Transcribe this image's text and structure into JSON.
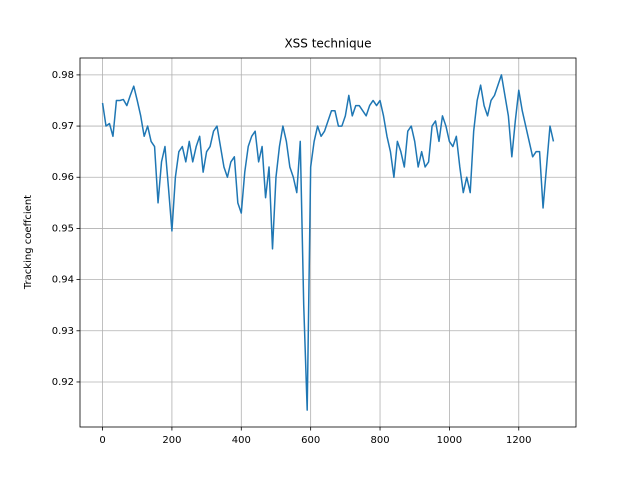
{
  "chart_data": {
    "type": "line",
    "title": "XSS technique",
    "y_label": "Tracking coeffcient",
    "x": [
      0,
      10,
      20,
      30,
      40,
      50,
      60,
      70,
      80,
      90,
      100,
      110,
      120,
      130,
      140,
      150,
      160,
      170,
      180,
      190,
      200,
      210,
      220,
      230,
      240,
      250,
      260,
      270,
      280,
      290,
      300,
      310,
      320,
      330,
      340,
      350,
      360,
      370,
      380,
      390,
      400,
      410,
      420,
      430,
      440,
      450,
      460,
      470,
      480,
      490,
      500,
      510,
      520,
      530,
      540,
      550,
      560,
      570,
      580,
      590,
      600,
      610,
      620,
      630,
      640,
      650,
      660,
      670,
      680,
      690,
      700,
      710,
      720,
      730,
      740,
      750,
      760,
      770,
      780,
      790,
      800,
      810,
      820,
      830,
      840,
      850,
      860,
      870,
      880,
      890,
      900,
      910,
      920,
      930,
      940,
      950,
      960,
      970,
      980,
      990,
      1000,
      1010,
      1020,
      1030,
      1040,
      1050,
      1060,
      1070,
      1080,
      1090,
      1100,
      1110,
      1120,
      1130,
      1140,
      1150,
      1160,
      1170,
      1180,
      1190,
      1200,
      1210,
      1220,
      1230,
      1240,
      1250,
      1260,
      1270,
      1280,
      1290,
      1300
    ],
    "series": [
      {
        "color": "#1f77b4",
        "values": [
          0.9745,
          0.97,
          0.9705,
          0.968,
          0.975,
          0.975,
          0.9752,
          0.974,
          0.976,
          0.9778,
          0.975,
          0.972,
          0.968,
          0.97,
          0.967,
          0.966,
          0.955,
          0.963,
          0.966,
          0.958,
          0.9495,
          0.96,
          0.965,
          0.966,
          0.963,
          0.967,
          0.963,
          0.966,
          0.968,
          0.961,
          0.965,
          0.966,
          0.969,
          0.97,
          0.966,
          0.962,
          0.96,
          0.963,
          0.964,
          0.955,
          0.953,
          0.961,
          0.966,
          0.968,
          0.969,
          0.963,
          0.966,
          0.956,
          0.962,
          0.946,
          0.96,
          0.966,
          0.97,
          0.967,
          0.962,
          0.96,
          0.957,
          0.967,
          0.935,
          0.9145,
          0.962,
          0.967,
          0.97,
          0.968,
          0.969,
          0.971,
          0.973,
          0.973,
          0.97,
          0.97,
          0.972,
          0.976,
          0.972,
          0.974,
          0.974,
          0.973,
          0.972,
          0.974,
          0.975,
          0.974,
          0.975,
          0.972,
          0.968,
          0.965,
          0.96,
          0.967,
          0.965,
          0.962,
          0.969,
          0.97,
          0.967,
          0.962,
          0.965,
          0.962,
          0.963,
          0.97,
          0.971,
          0.967,
          0.972,
          0.97,
          0.967,
          0.966,
          0.968,
          0.962,
          0.957,
          0.96,
          0.957,
          0.969,
          0.975,
          0.978,
          0.974,
          0.972,
          0.975,
          0.976,
          0.978,
          0.98,
          0.976,
          0.972,
          0.964,
          0.971,
          0.977,
          0.973,
          0.97,
          0.967,
          0.964,
          0.965,
          0.965,
          0.954,
          0.962,
          0.97,
          0.967
        ]
      }
    ],
    "xlim": [
      -65,
      1365
    ],
    "ylim": [
      0.9112,
      0.9833
    ],
    "xticks": [
      0,
      200,
      400,
      600,
      800,
      1000,
      1200
    ],
    "yticks": [
      0.92,
      0.93,
      0.94,
      0.95,
      0.96,
      0.97,
      0.98
    ],
    "grid": true
  }
}
